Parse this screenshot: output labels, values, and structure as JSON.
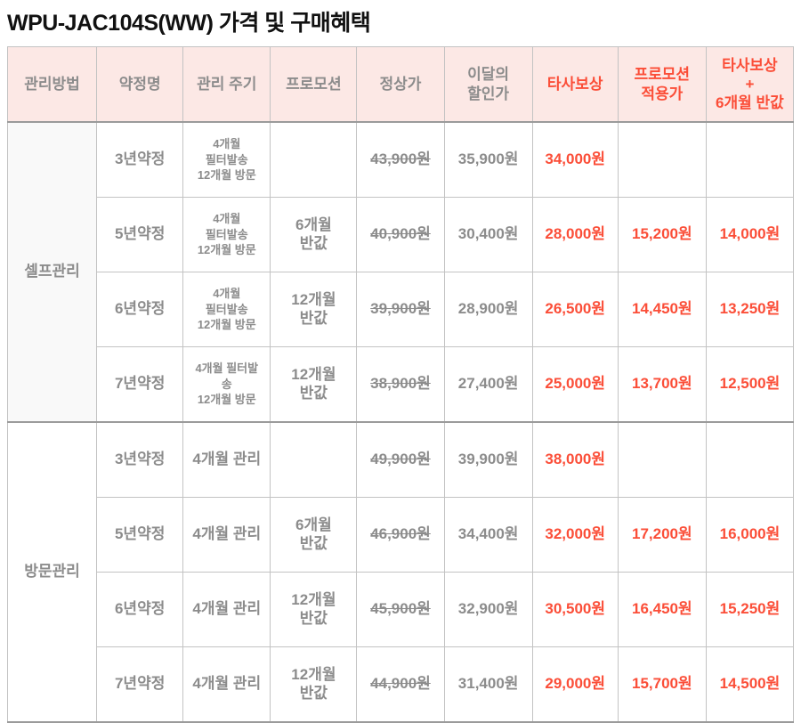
{
  "title": "WPU-JAC104S(WW) 가격 및 구매혜택",
  "colors": {
    "header_bg": "#fce8e5",
    "header_text_gray": "#8c8c8c",
    "accent_red": "#fb4e38",
    "body_text_gray": "#8c8c8c",
    "border_gray": "#c3c3c3",
    "divider_gray": "#9b9b9b",
    "group_cell_bg": "#f9f9f9"
  },
  "table": {
    "headers": [
      {
        "label": "관리방법",
        "accent": false
      },
      {
        "label": "약정명",
        "accent": false
      },
      {
        "label": "관리 주기",
        "accent": false
      },
      {
        "label": "프로모션",
        "accent": false
      },
      {
        "label": "정상가",
        "accent": false
      },
      {
        "label": "이달의\n할인가",
        "accent": false
      },
      {
        "label": "타사보상",
        "accent": true
      },
      {
        "label": "프로모션\n적용가",
        "accent": true
      },
      {
        "label": "타사보상\n+\n6개월 반값",
        "accent": true
      }
    ],
    "groups": [
      {
        "name": "셀프관리",
        "shaded": true,
        "rows": [
          {
            "contract": "3년약정",
            "cycle": "4개월\n필터발송\n12개월 방문",
            "cycle_small": true,
            "promotion": "",
            "normal_price": "43,900원",
            "monthly_discount": "35,900원",
            "competitor_reward": "34,000원",
            "promo_applied_price": "",
            "reward_plus_half": ""
          },
          {
            "contract": "5년약정",
            "cycle": "4개월\n필터발송\n12개월 방문",
            "cycle_small": true,
            "promotion": "6개월\n반값",
            "normal_price": "40,900원",
            "monthly_discount": "30,400원",
            "competitor_reward": "28,000원",
            "promo_applied_price": "15,200원",
            "reward_plus_half": "14,000원"
          },
          {
            "contract": "6년약정",
            "cycle": "4개월\n필터발송\n12개월 방문",
            "cycle_small": true,
            "promotion": "12개월\n반값",
            "normal_price": "39,900원",
            "monthly_discount": "28,900원",
            "competitor_reward": "26,500원",
            "promo_applied_price": "14,450원",
            "reward_plus_half": "13,250원"
          },
          {
            "contract": "7년약정",
            "cycle": "4개월 필터발\n송\n12개월 방문",
            "cycle_small": true,
            "promotion": "12개월\n반값",
            "normal_price": "38,900원",
            "monthly_discount": "27,400원",
            "competitor_reward": "25,000원",
            "promo_applied_price": "13,700원",
            "reward_plus_half": "12,500원"
          }
        ]
      },
      {
        "name": "방문관리",
        "shaded": false,
        "rows": [
          {
            "contract": "3년약정",
            "cycle": "4개월 관리",
            "cycle_small": false,
            "promotion": "",
            "normal_price": "49,900원",
            "monthly_discount": "39,900원",
            "competitor_reward": "38,000원",
            "promo_applied_price": "",
            "reward_plus_half": ""
          },
          {
            "contract": "5년약정",
            "cycle": "4개월 관리",
            "cycle_small": false,
            "promotion": "6개월\n반값",
            "normal_price": "46,900원",
            "monthly_discount": "34,400원",
            "competitor_reward": "32,000원",
            "promo_applied_price": "17,200원",
            "reward_plus_half": "16,000원"
          },
          {
            "contract": "6년약정",
            "cycle": "4개월 관리",
            "cycle_small": false,
            "promotion": "12개월\n반값",
            "normal_price": "45,900원",
            "monthly_discount": "32,900원",
            "competitor_reward": "30,500원",
            "promo_applied_price": "16,450원",
            "reward_plus_half": "15,250원"
          },
          {
            "contract": "7년약정",
            "cycle": "4개월 관리",
            "cycle_small": false,
            "promotion": "12개월\n반값",
            "normal_price": "44,900원",
            "monthly_discount": "31,400원",
            "competitor_reward": "29,000원",
            "promo_applied_price": "15,700원",
            "reward_plus_half": "14,500원"
          }
        ]
      }
    ]
  }
}
